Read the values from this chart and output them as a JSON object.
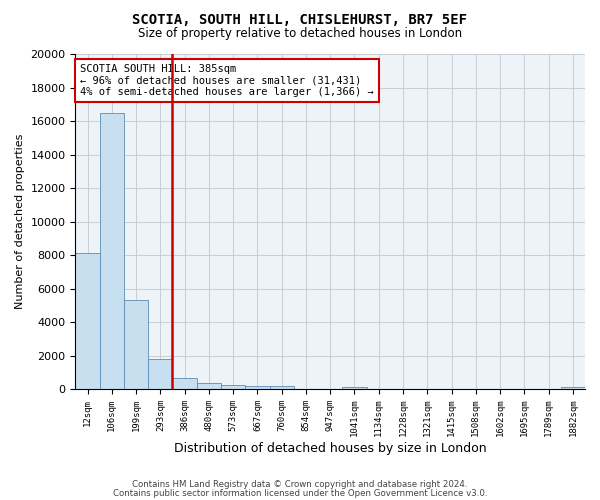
{
  "title1": "SCOTIA, SOUTH HILL, CHISLEHURST, BR7 5EF",
  "title2": "Size of property relative to detached houses in London",
  "xlabel": "Distribution of detached houses by size in London",
  "ylabel": "Number of detached properties",
  "categories": [
    "12sqm",
    "106sqm",
    "199sqm",
    "293sqm",
    "386sqm",
    "480sqm",
    "573sqm",
    "667sqm",
    "760sqm",
    "854sqm",
    "947sqm",
    "1041sqm",
    "1134sqm",
    "1228sqm",
    "1321sqm",
    "1415sqm",
    "1508sqm",
    "1602sqm",
    "1695sqm",
    "1789sqm",
    "1882sqm"
  ],
  "bar_values": [
    8100,
    16500,
    5300,
    1800,
    650,
    350,
    260,
    210,
    160,
    0,
    0,
    100,
    0,
    0,
    0,
    0,
    0,
    0,
    0,
    0,
    100
  ],
  "bar_color": "#c8dff0",
  "bar_edge_color": "#5b8db8",
  "vline_color": "#cc0000",
  "vline_position": 4,
  "annotation_text": "SCOTIA SOUTH HILL: 385sqm\n← 96% of detached houses are smaller (31,431)\n4% of semi-detached houses are larger (1,366) →",
  "annotation_box_color": "#ffffff",
  "annotation_box_edgecolor": "#cc0000",
  "ylim": [
    0,
    20000
  ],
  "yticks": [
    0,
    2000,
    4000,
    6000,
    8000,
    10000,
    12000,
    14000,
    16000,
    18000,
    20000
  ],
  "footer1": "Contains HM Land Registry data © Crown copyright and database right 2024.",
  "footer2": "Contains public sector information licensed under the Open Government Licence v3.0.",
  "bg_color": "#ffffff",
  "plot_bg_color": "#eef3f8",
  "grid_color": "#c0c8d4"
}
